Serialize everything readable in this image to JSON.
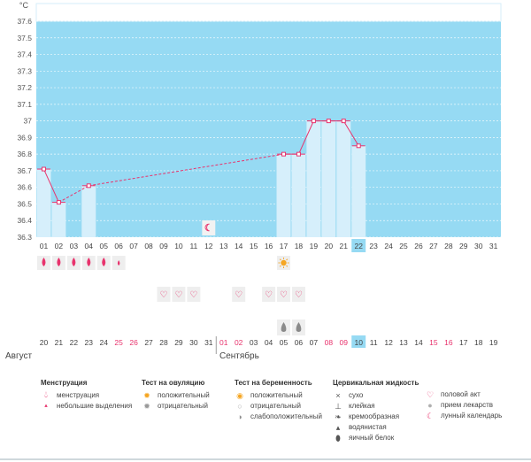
{
  "chart": {
    "unit": "°C",
    "y_ticks": [
      "37.6",
      "37.5",
      "37.4",
      "37.3",
      "37.2",
      "37.1",
      "37",
      "36.9",
      "36.8",
      "36.7",
      "36.6",
      "36.5",
      "36.4",
      "36.3"
    ],
    "cycle_days": [
      "01",
      "02",
      "03",
      "04",
      "05",
      "06",
      "07",
      "08",
      "09",
      "10",
      "11",
      "12",
      "13",
      "14",
      "15",
      "16",
      "17",
      "18",
      "19",
      "20",
      "21",
      "22",
      "23",
      "24",
      "25",
      "26",
      "27",
      "28",
      "29",
      "30",
      "31"
    ],
    "today_index": 21,
    "calendar_days": [
      "20",
      "21",
      "22",
      "23",
      "24",
      "25",
      "26",
      "27",
      "28",
      "29",
      "30",
      "31",
      "01",
      "02",
      "03",
      "04",
      "05",
      "06",
      "07",
      "08",
      "09",
      "10",
      "11",
      "12",
      "13",
      "14",
      "15",
      "16",
      "17",
      "18",
      "19"
    ],
    "calendar_red": [
      5,
      6,
      12,
      13,
      19,
      20,
      26,
      27
    ],
    "calendar_today_index": 21,
    "month_labels": [
      "Август",
      "Сентябрь"
    ],
    "colors": {
      "bg": "#96daf3",
      "column": "#d6effb",
      "line": "#e8336d",
      "today_cell": "#96daf3",
      "red_day": "#e8336d"
    },
    "markers": {
      "menstruation": [
        0,
        1,
        2,
        3,
        4,
        5
      ],
      "menstruation_small": [
        5
      ],
      "ovulation_positive": [
        16
      ],
      "sex": [
        8,
        9,
        10,
        13,
        15,
        16,
        17
      ],
      "egg_white": [
        16,
        17
      ],
      "lunar": [
        11
      ]
    }
  },
  "chart_data": {
    "type": "line",
    "title": "",
    "ylabel": "°C",
    "ylim": [
      36.3,
      37.6
    ],
    "x": [
      "01",
      "02",
      "03",
      "04",
      "05",
      "06",
      "07",
      "08",
      "09",
      "10",
      "11",
      "12",
      "13",
      "14",
      "15",
      "16",
      "17",
      "18",
      "19",
      "20",
      "21",
      "22",
      "23",
      "24",
      "25",
      "26",
      "27",
      "28",
      "29",
      "30",
      "31"
    ],
    "series": [
      {
        "values": [
          36.71,
          36.51,
          null,
          36.61,
          null,
          null,
          null,
          null,
          null,
          null,
          null,
          null,
          null,
          null,
          null,
          null,
          36.8,
          36.8,
          37.0,
          37.0,
          37.0,
          36.85,
          null,
          null,
          null,
          null,
          null,
          null,
          null,
          null,
          null
        ]
      }
    ]
  },
  "legend": {
    "menstruation": {
      "title": "Менструация",
      "items": [
        {
          "icon": "drop-icon",
          "label": "менструация"
        },
        {
          "icon": "small-drop-icon",
          "label": "небольшие выделения"
        }
      ]
    },
    "ovulation": {
      "title": "Тест на овуляцию",
      "items": [
        {
          "icon": "sun-positive-icon",
          "label": "положительный"
        },
        {
          "icon": "sun-negative-icon",
          "label": "отрицательный"
        }
      ]
    },
    "pregnancy": {
      "title": "Тест на беременность",
      "items": [
        {
          "icon": "test-positive-icon",
          "label": "положительный"
        },
        {
          "icon": "test-negative-icon",
          "label": "отрицательный"
        },
        {
          "icon": "test-weak-icon",
          "label": "слабоположительный"
        }
      ]
    },
    "cervical": {
      "title": "Цервикальная жидкость",
      "items": [
        {
          "icon": "dry-icon",
          "label": "сухо"
        },
        {
          "icon": "sticky-icon",
          "label": "клейкая"
        },
        {
          "icon": "creamy-icon",
          "label": "кремообразная"
        },
        {
          "icon": "watery-icon",
          "label": "водянистая"
        },
        {
          "icon": "egg-white-icon",
          "label": "яичный белок"
        }
      ]
    },
    "other": {
      "items": [
        {
          "icon": "heart-icon",
          "label": "половой акт"
        },
        {
          "icon": "pill-icon",
          "label": "прием лекарств"
        },
        {
          "icon": "moon-icon",
          "label": "лунный календарь"
        }
      ]
    }
  }
}
